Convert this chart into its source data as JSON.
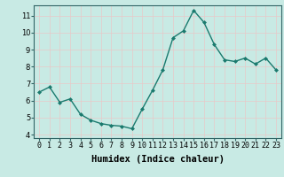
{
  "x": [
    0,
    1,
    2,
    3,
    4,
    5,
    6,
    7,
    8,
    9,
    10,
    11,
    12,
    13,
    14,
    15,
    16,
    17,
    18,
    19,
    20,
    21,
    22,
    23
  ],
  "y": [
    6.5,
    6.8,
    5.9,
    6.1,
    5.2,
    4.85,
    4.65,
    4.55,
    4.5,
    4.35,
    5.5,
    6.6,
    7.8,
    9.7,
    10.1,
    11.3,
    10.6,
    9.3,
    8.4,
    8.3,
    8.5,
    8.15,
    8.5,
    7.8
  ],
  "xlabel": "Humidex (Indice chaleur)",
  "ylabel": "",
  "title": "",
  "bg_color": "#c8eae4",
  "plot_bg_color": "#c8eae4",
  "line_color": "#1a7a6e",
  "marker": "D",
  "marker_size": 2.0,
  "line_width": 1.0,
  "xlim": [
    -0.5,
    23.5
  ],
  "ylim": [
    3.8,
    11.6
  ],
  "yticks": [
    4,
    5,
    6,
    7,
    8,
    9,
    10,
    11
  ],
  "xtick_labels": [
    "0",
    "1",
    "2",
    "3",
    "4",
    "5",
    "6",
    "7",
    "8",
    "9",
    "10",
    "11",
    "12",
    "13",
    "14",
    "15",
    "16",
    "17",
    "18",
    "19",
    "20",
    "21",
    "22",
    "23"
  ],
  "grid_color": "#e8c8c8",
  "tick_fontsize": 6,
  "xlabel_fontsize": 7.5
}
